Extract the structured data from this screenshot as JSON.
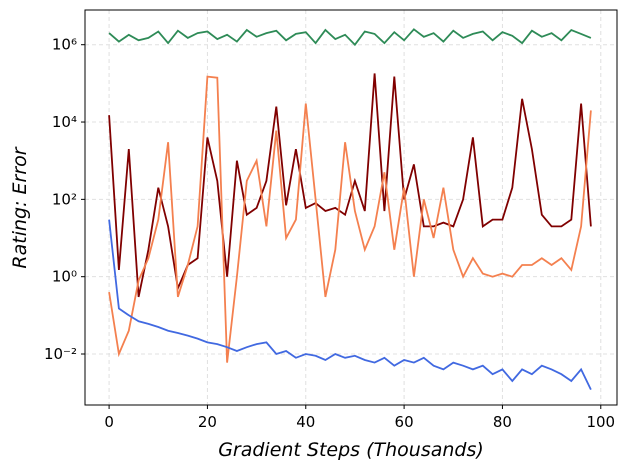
{
  "chart_data": {
    "type": "line",
    "x_label": "Gradient Steps (Thousands)",
    "y_label": "Rating: Error",
    "log_y": true,
    "grid": true,
    "xlim": [
      -4.9,
      103.3
    ],
    "xticks": [
      0,
      20,
      40,
      60,
      80,
      100
    ],
    "ylim": [
      0.00048,
      7900000
    ],
    "yticks": [
      {
        "value": 0.01,
        "label": "10⁻²"
      },
      {
        "value": 1,
        "label": "10⁰"
      },
      {
        "value": 100,
        "label": "10²"
      },
      {
        "value": 10000,
        "label": "10⁴"
      },
      {
        "value": 1000000,
        "label": "10⁶"
      }
    ],
    "x": [
      0,
      2,
      4,
      6,
      8,
      10,
      12,
      14,
      16,
      18,
      20,
      22,
      24,
      26,
      28,
      30,
      32,
      34,
      36,
      38,
      40,
      42,
      44,
      46,
      48,
      50,
      52,
      54,
      56,
      58,
      60,
      62,
      64,
      66,
      68,
      70,
      72,
      74,
      76,
      78,
      80,
      82,
      84,
      86,
      88,
      90,
      92,
      94,
      96,
      98
    ],
    "series": [
      {
        "color": "#2e8b57",
        "values": [
          2000000,
          1200000,
          1800000,
          1300000,
          1500000,
          2200000,
          1100000,
          2300000,
          1500000,
          2000000,
          2200000,
          1400000,
          1800000,
          1200000,
          2400000,
          1600000,
          2000000,
          2300000,
          1300000,
          1900000,
          2100000,
          1100000,
          2400000,
          1400000,
          1800000,
          1000000,
          2200000,
          1900000,
          1100000,
          2100000,
          1300000,
          2500000,
          1600000,
          2000000,
          1200000,
          2300000,
          1500000,
          1900000,
          2200000,
          1300000,
          2100000,
          1700000,
          1100000,
          2300000,
          1600000,
          2000000,
          1300000,
          2400000,
          1900000,
          1500000
        ]
      },
      {
        "color": "#800000",
        "values": [
          15000,
          1.5,
          2000,
          0.3,
          5,
          200,
          20,
          0.5,
          2,
          3,
          4000,
          300,
          1,
          1000,
          40,
          60,
          300,
          25000,
          70,
          2000,
          60,
          80,
          50,
          60,
          40,
          300,
          50,
          180000,
          50,
          150000,
          100,
          800,
          20,
          20,
          25,
          20,
          100,
          4000,
          20,
          30,
          30,
          200,
          40000,
          2000,
          40,
          20,
          20,
          30,
          30000,
          20
        ]
      },
      {
        "color": "#f4804f",
        "values": [
          0.4,
          0.01,
          0.04,
          0.8,
          3,
          30,
          3000,
          0.3,
          2,
          20,
          150000,
          140000,
          0.006,
          1,
          300,
          1000,
          20,
          6000,
          10,
          30,
          30000,
          100,
          0.3,
          5,
          3000,
          50,
          5,
          20,
          500,
          5,
          200,
          1,
          100,
          10,
          200,
          5,
          1,
          3,
          1.2,
          1,
          1.2,
          1,
          2,
          2,
          3,
          2,
          3,
          1.5,
          20,
          20000
        ]
      },
      {
        "color": "#4169e1",
        "values": [
          30,
          0.15,
          0.1,
          0.07,
          0.06,
          0.05,
          0.04,
          0.035,
          0.03,
          0.025,
          0.02,
          0.018,
          0.015,
          0.012,
          0.015,
          0.018,
          0.02,
          0.01,
          0.012,
          0.008,
          0.01,
          0.009,
          0.007,
          0.01,
          0.008,
          0.009,
          0.007,
          0.006,
          0.008,
          0.005,
          0.007,
          0.006,
          0.008,
          0.005,
          0.004,
          0.006,
          0.005,
          0.004,
          0.005,
          0.003,
          0.004,
          0.002,
          0.004,
          0.003,
          0.005,
          0.004,
          0.003,
          0.002,
          0.004,
          0.0012
        ]
      }
    ]
  }
}
